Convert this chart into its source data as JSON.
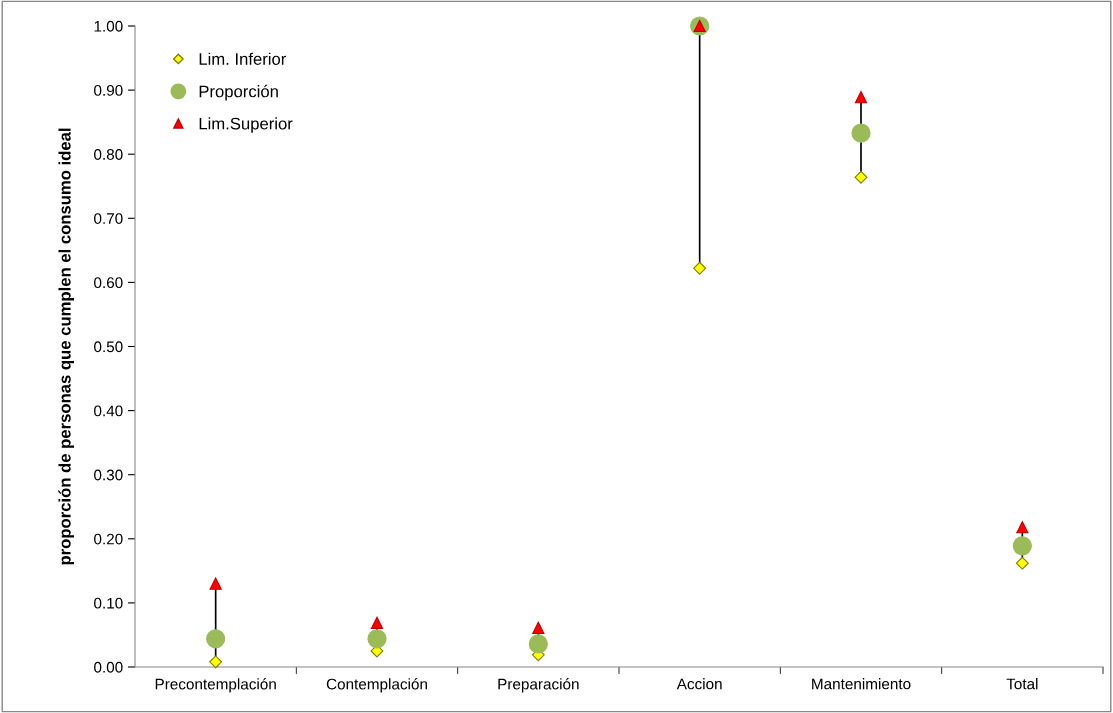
{
  "chart_data": {
    "type": "scatter",
    "ylabel": "proporción de personas que cumplen el consumo ideal",
    "categories": [
      "Precontemplación",
      "Contemplación",
      "Preparación",
      "Accion",
      "Mantenimiento",
      "Total"
    ],
    "series": [
      {
        "name": "Lim. Inferior",
        "color": "#ffff00",
        "marker": "diamond",
        "values": [
          0.008,
          0.025,
          0.019,
          0.622,
          0.764,
          0.162
        ]
      },
      {
        "name": "Proporción",
        "color": "#9bbb59",
        "marker": "circle",
        "values": [
          0.044,
          0.044,
          0.036,
          1.0,
          0.833,
          0.189
        ]
      },
      {
        "name": "Lim.Superior",
        "color": "#ff0000",
        "marker": "triangle",
        "values": [
          0.13,
          0.069,
          0.061,
          1.0,
          0.889,
          0.218
        ]
      }
    ],
    "ylim": [
      0,
      1
    ],
    "yticks": [
      {
        "value": 0,
        "label": "0.00"
      },
      {
        "value": 0.1,
        "label": "0.10"
      },
      {
        "value": 0.2,
        "label": "0.20"
      },
      {
        "value": 0.3,
        "label": "0.30"
      },
      {
        "value": 0.4,
        "label": "0.40"
      },
      {
        "value": 0.5,
        "label": "0.50"
      },
      {
        "value": 0.6,
        "label": "0.60"
      },
      {
        "value": 0.7,
        "label": "0.70"
      },
      {
        "value": 0.8,
        "label": "0.80"
      },
      {
        "value": 0.9,
        "label": "0.90"
      },
      {
        "value": 1,
        "label": "1.00"
      }
    ],
    "grid": false,
    "legend": "top left"
  }
}
